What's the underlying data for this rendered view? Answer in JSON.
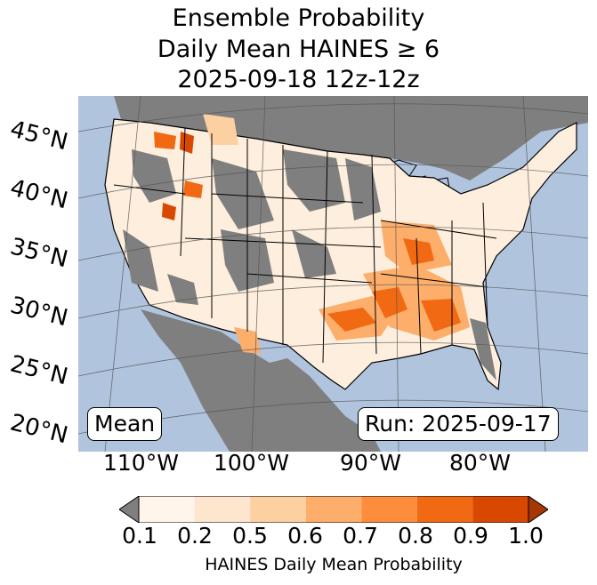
{
  "title": {
    "line1": "Ensemble Probability",
    "line2": "Daily Mean HAINES ≥ 6",
    "line3": "2025-09-18 12z-12z"
  },
  "map": {
    "region": "Continental United States",
    "ocean_color": "#b0c4de",
    "no_data_color": "#7f7f7f",
    "lat_labels": [
      "45°N",
      "40°N",
      "35°N",
      "30°N",
      "25°N",
      "20°N"
    ],
    "lon_labels": [
      "110°W",
      "100°W",
      "90°W",
      "80°W"
    ],
    "stat_label": "Mean",
    "run_label": "Run: 2025-09-17"
  },
  "colorbar": {
    "ticks": [
      "0.1",
      "0.2",
      "0.5",
      "0.6",
      "0.7",
      "0.8",
      "0.9",
      "1.0"
    ],
    "colors": [
      "#fff5eb",
      "#fee6ce",
      "#fdd0a2",
      "#fdae6b",
      "#fd8d3c",
      "#f16913",
      "#d94801",
      "#a63603"
    ],
    "under_color": "#7f7f7f",
    "label": "HAINES Daily Mean Probability"
  }
}
